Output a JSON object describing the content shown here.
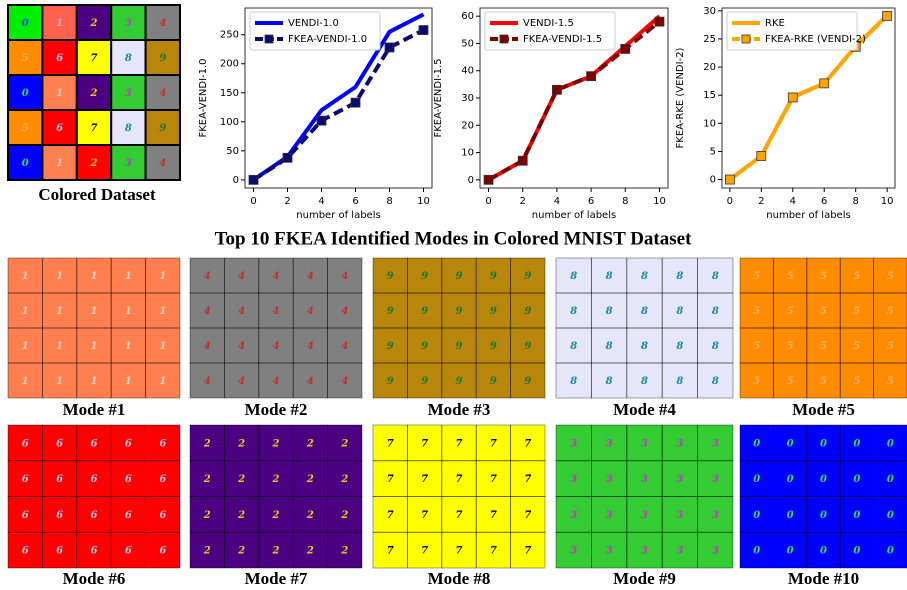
{
  "chart_data": [
    {
      "type": "line",
      "xlabel": "number of labels",
      "ylabel": "FKEA-VENDI-1.0",
      "legend": "upper left",
      "x": [
        0,
        2,
        4,
        6,
        8,
        10
      ],
      "xlim": [
        -0.5,
        10.5
      ],
      "xticks": [
        0,
        2,
        4,
        6,
        8,
        10
      ],
      "ylim": [
        -14,
        296
      ],
      "yticks": [
        0,
        50,
        100,
        150,
        200,
        250
      ],
      "series": [
        {
          "name": "VENDI-1.0",
          "color": "#0000ff",
          "values": [
            0,
            40,
            120,
            160,
            255,
            285
          ]
        },
        {
          "name": "FKEA-VENDI-1.0",
          "color": "#0a0a6e",
          "dash": true,
          "marker": "s",
          "values": [
            0,
            38,
            102,
            133,
            228,
            258
          ]
        }
      ]
    },
    {
      "type": "line",
      "xlabel": "number of labels",
      "ylabel": "FKEA-VENDI-1.5",
      "legend": "upper left",
      "x": [
        0,
        2,
        4,
        6,
        8,
        10
      ],
      "xlim": [
        -0.5,
        10.5
      ],
      "xticks": [
        0,
        2,
        4,
        6,
        8,
        10
      ],
      "ylim": [
        -3,
        63
      ],
      "yticks": [
        0,
        10,
        20,
        30,
        40,
        50,
        60
      ],
      "series": [
        {
          "name": "VENDI-1.5",
          "color": "#ff0000",
          "values": [
            0,
            7,
            33,
            38,
            49,
            60
          ]
        },
        {
          "name": "FKEA-VENDI-1.5",
          "color": "#7b0000",
          "dash": true,
          "marker": "s",
          "values": [
            0,
            7,
            33,
            38,
            48,
            58
          ]
        }
      ]
    },
    {
      "type": "line",
      "xlabel": "number of labels",
      "ylabel": "FKEA-RKE (VENDI-2)",
      "legend": "upper left",
      "x": [
        0,
        2,
        4,
        6,
        8,
        10
      ],
      "xlim": [
        -0.5,
        10.5
      ],
      "xticks": [
        0,
        2,
        4,
        6,
        8,
        10
      ],
      "ylim": [
        -1.5,
        30.5
      ],
      "yticks": [
        0,
        5,
        10,
        15,
        20,
        25,
        30
      ],
      "series": [
        {
          "name": "RKE",
          "color": "#ffa500",
          "values": [
            0,
            4.2,
            14.7,
            17.1,
            23.7,
            29.2
          ]
        },
        {
          "name": "FKEA-RKE (VENDI-2)",
          "color": "#ffa500",
          "dash": true,
          "marker": "s",
          "values": [
            0,
            4.2,
            14.6,
            17.1,
            23.6,
            29.1
          ]
        }
      ]
    }
  ],
  "figure_title": "Top 10 FKEA Identified Modes in Colored MNIST Dataset",
  "colored_dataset": {
    "caption": "Colored Dataset",
    "cells": [
      {
        "digit": "0",
        "bg": "#00ee00",
        "fg": "#2040ff"
      },
      {
        "digit": "1",
        "bg": "#ff6050",
        "fg": "#ffb0a0"
      },
      {
        "digit": "2",
        "bg": "#4b0082",
        "fg": "#f5c518"
      },
      {
        "digit": "3",
        "bg": "#33cc33",
        "fg": "#d030d0"
      },
      {
        "digit": "4",
        "bg": "#808080",
        "fg": "#c03030"
      },
      {
        "digit": "5",
        "bg": "#ff8c00",
        "fg": "#ffb060"
      },
      {
        "digit": "6",
        "bg": "#ff0000",
        "fg": "#a0c8e8"
      },
      {
        "digit": "7",
        "bg": "#ffff00",
        "fg": "#000000"
      },
      {
        "digit": "8",
        "bg": "#e6e6fa",
        "fg": "#1a8a9a"
      },
      {
        "digit": "9",
        "bg": "#b8860b",
        "fg": "#1a7a3a"
      },
      {
        "digit": "0",
        "bg": "#0000ff",
        "fg": "#33dd55"
      },
      {
        "digit": "1",
        "bg": "#ff7f50",
        "fg": "#ffd0c0"
      },
      {
        "digit": "2",
        "bg": "#4b0082",
        "fg": "#f5c518"
      },
      {
        "digit": "3",
        "bg": "#33cc33",
        "fg": "#d030d0"
      },
      {
        "digit": "4",
        "bg": "#808080",
        "fg": "#c03030"
      },
      {
        "digit": "5",
        "bg": "#ff8c00",
        "fg": "#ffb060"
      },
      {
        "digit": "6",
        "bg": "#ff0000",
        "fg": "#a0c8e8"
      },
      {
        "digit": "7",
        "bg": "#ffff00",
        "fg": "#000000"
      },
      {
        "digit": "8",
        "bg": "#e6e6fa",
        "fg": "#1a8a9a"
      },
      {
        "digit": "9",
        "bg": "#b8860b",
        "fg": "#1a7a3a"
      },
      {
        "digit": "0",
        "bg": "#0000ff",
        "fg": "#33dd55"
      },
      {
        "digit": "1",
        "bg": "#ff7f50",
        "fg": "#ffd0c0"
      },
      {
        "digit": "2",
        "bg": "#ff0000",
        "fg": "#f5c518"
      },
      {
        "digit": "3",
        "bg": "#33cc33",
        "fg": "#d030d0"
      },
      {
        "digit": "4",
        "bg": "#808080",
        "fg": "#c03030"
      }
    ]
  },
  "modes": [
    {
      "label": "Mode #1",
      "digit": "1",
      "bg": "#ff7f50",
      "fg": "#ffd0c0"
    },
    {
      "label": "Mode #2",
      "digit": "4",
      "bg": "#808080",
      "fg": "#c03030"
    },
    {
      "label": "Mode #3",
      "digit": "9",
      "bg": "#b8860b",
      "fg": "#1a7a3a"
    },
    {
      "label": "Mode #4",
      "digit": "8",
      "bg": "#e6e6fa",
      "fg": "#1a8a9a"
    },
    {
      "label": "Mode #5",
      "digit": "5",
      "bg": "#ff8c00",
      "fg": "#ffb060"
    },
    {
      "label": "Mode #6",
      "digit": "6",
      "bg": "#ff0000",
      "fg": "#a0c8e8"
    },
    {
      "label": "Mode #7",
      "digit": "2",
      "bg": "#4b0082",
      "fg": "#f5c518"
    },
    {
      "label": "Mode #8",
      "digit": "7",
      "bg": "#ffff00",
      "fg": "#000000"
    },
    {
      "label": "Mode #9",
      "digit": "3",
      "bg": "#33cc33",
      "fg": "#d030d0"
    },
    {
      "label": "Mode #10",
      "digit": "0",
      "bg": "#0000ff",
      "fg": "#33dd55"
    }
  ]
}
